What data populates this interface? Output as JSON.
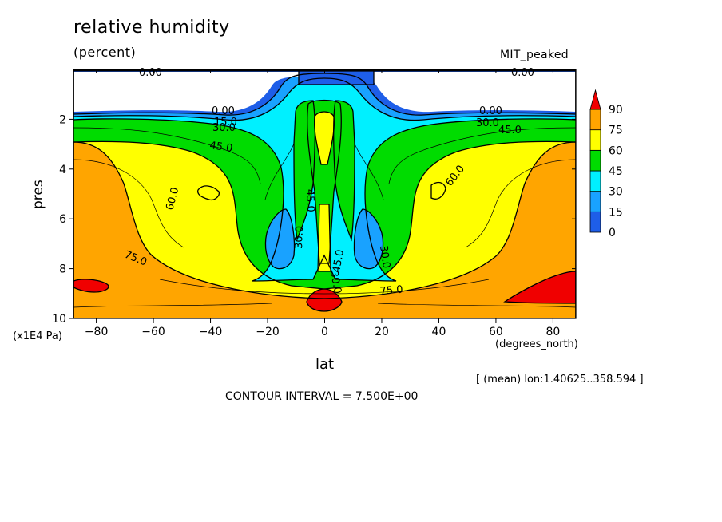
{
  "chart_data": {
    "type": "heatmap",
    "title": "relative humidity",
    "subtitle": "(percent)",
    "run_label": "MIT_peaked",
    "xlabel": "lat",
    "x_unit": "(degrees_north)",
    "ylabel": "pres",
    "y_unit": "(x1E4 Pa)",
    "xlim": [
      -88,
      88
    ],
    "ylim": [
      10,
      0
    ],
    "x_ticks": [
      -80,
      -60,
      -40,
      -20,
      0,
      20,
      40,
      60,
      80
    ],
    "x_tick_labels": [
      "−80",
      "−60",
      "−40",
      "−20",
      "0",
      "20",
      "40",
      "60",
      "80"
    ],
    "y_ticks": [
      2,
      4,
      6,
      8,
      10
    ],
    "y_tick_labels": [
      "2",
      "4",
      "6",
      "8",
      "10"
    ],
    "levels": [
      0,
      15,
      30,
      45,
      60,
      75,
      90
    ],
    "level_labels": [
      "0",
      "15",
      "30",
      "45",
      "60",
      "75",
      "90"
    ],
    "colors": [
      "#1e5ee8",
      "#19a2ff",
      "#00f0ff",
      "#00dc00",
      "#ffff00",
      "#ffa500",
      "#f00000"
    ],
    "contour_labels": [
      "0.00",
      "0.00",
      "0.00",
      "0.00",
      "15.0",
      "30.0",
      "45.0",
      "60.0",
      "75.0",
      "75.0",
      "30.0",
      "45.0",
      "45.0",
      "30.0",
      "45.0",
      "30.0",
      "60.0",
      "0.00",
      "30.0",
      "45.0"
    ],
    "annotation": "[ (mean) lon:1.40625..358.594 ]",
    "contour_interval": "CONTOUR INTERVAL = 7.500E+00"
  }
}
